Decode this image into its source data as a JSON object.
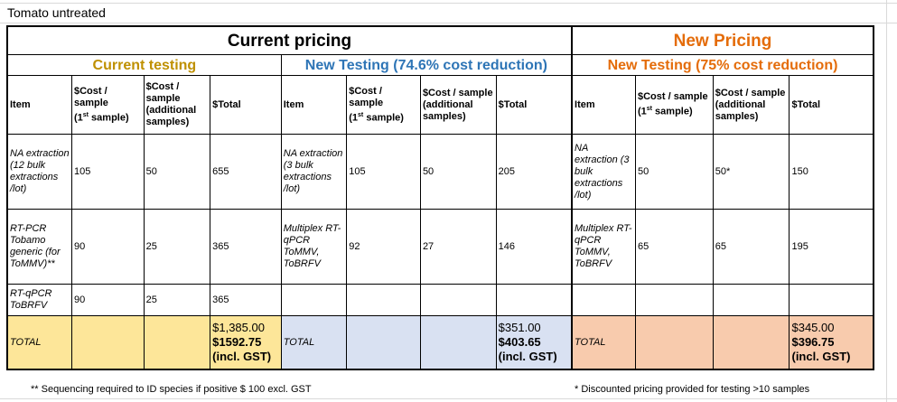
{
  "sheet_title": "Tomato untreated",
  "sections": {
    "current_pricing": "Current pricing",
    "new_pricing": "New Pricing"
  },
  "groups": {
    "current_testing": "Current testing",
    "new_testing_a": "New Testing (74.6% cost reduction)",
    "new_testing_b": "New Testing (75% cost reduction)"
  },
  "headers": {
    "item": "Item",
    "cost_first_a": "$Cost / sample",
    "cost_first_b": "(1",
    "cost_first_sup": "st",
    "cost_first_c": "sample)",
    "cost_additional": "$Cost / sample (additional samples)",
    "total": "$Total"
  },
  "current_rows": [
    {
      "item": "NA extraction (12 bulk extractions /lot)",
      "first": "105",
      "additional": "50",
      "total": "655"
    },
    {
      "item": "RT-PCR Tobamo generic (for ToMMV)**",
      "first": "90",
      "additional": "25",
      "total": "365"
    },
    {
      "item": "RT-qPCR ToBRFV",
      "first": "90",
      "additional": "25",
      "total": "365"
    }
  ],
  "new_a_rows": [
    {
      "item": "NA extraction (3 bulk extractions /lot)",
      "first": "105",
      "additional": "50",
      "total": "205"
    },
    {
      "item": "Multiplex RT-qPCR ToMMV, ToBRFV",
      "first": "92",
      "additional": "27",
      "total": "146"
    }
  ],
  "new_b_rows": [
    {
      "item": "NA extraction (3 bulk extractions /lot)",
      "first": "50",
      "additional": "50*",
      "total": "150"
    },
    {
      "item": "Multiplex RT-qPCR ToMMV, ToBRFV",
      "first": "65",
      "additional": "65",
      "total": "195"
    }
  ],
  "totals": {
    "label": "TOTAL",
    "current": {
      "ex": "$1,385.00",
      "inc": "$1592.75",
      "inc_note": "(incl. GST)"
    },
    "new_a": {
      "ex": "$351.00",
      "inc": "$403.65",
      "inc_note": "(incl. GST)"
    },
    "new_b": {
      "ex": "$345.00",
      "inc": "$396.75",
      "inc_note": "(incl. GST)"
    }
  },
  "footnotes": {
    "left": "** Sequencing required to ID species if positive $ 100 excl. GST",
    "right": "* Discounted pricing provided for testing >10 samples"
  },
  "colors": {
    "current_pricing": "#000000",
    "new_pricing": "#e46c0a",
    "current_testing": "#bf9000",
    "new_testing_a": "#2e75b6",
    "new_testing_b": "#e46c0a",
    "total_current_bg": "#fde699",
    "total_new_a_bg": "#d9e1f2",
    "total_new_b_bg": "#f8cbad"
  }
}
